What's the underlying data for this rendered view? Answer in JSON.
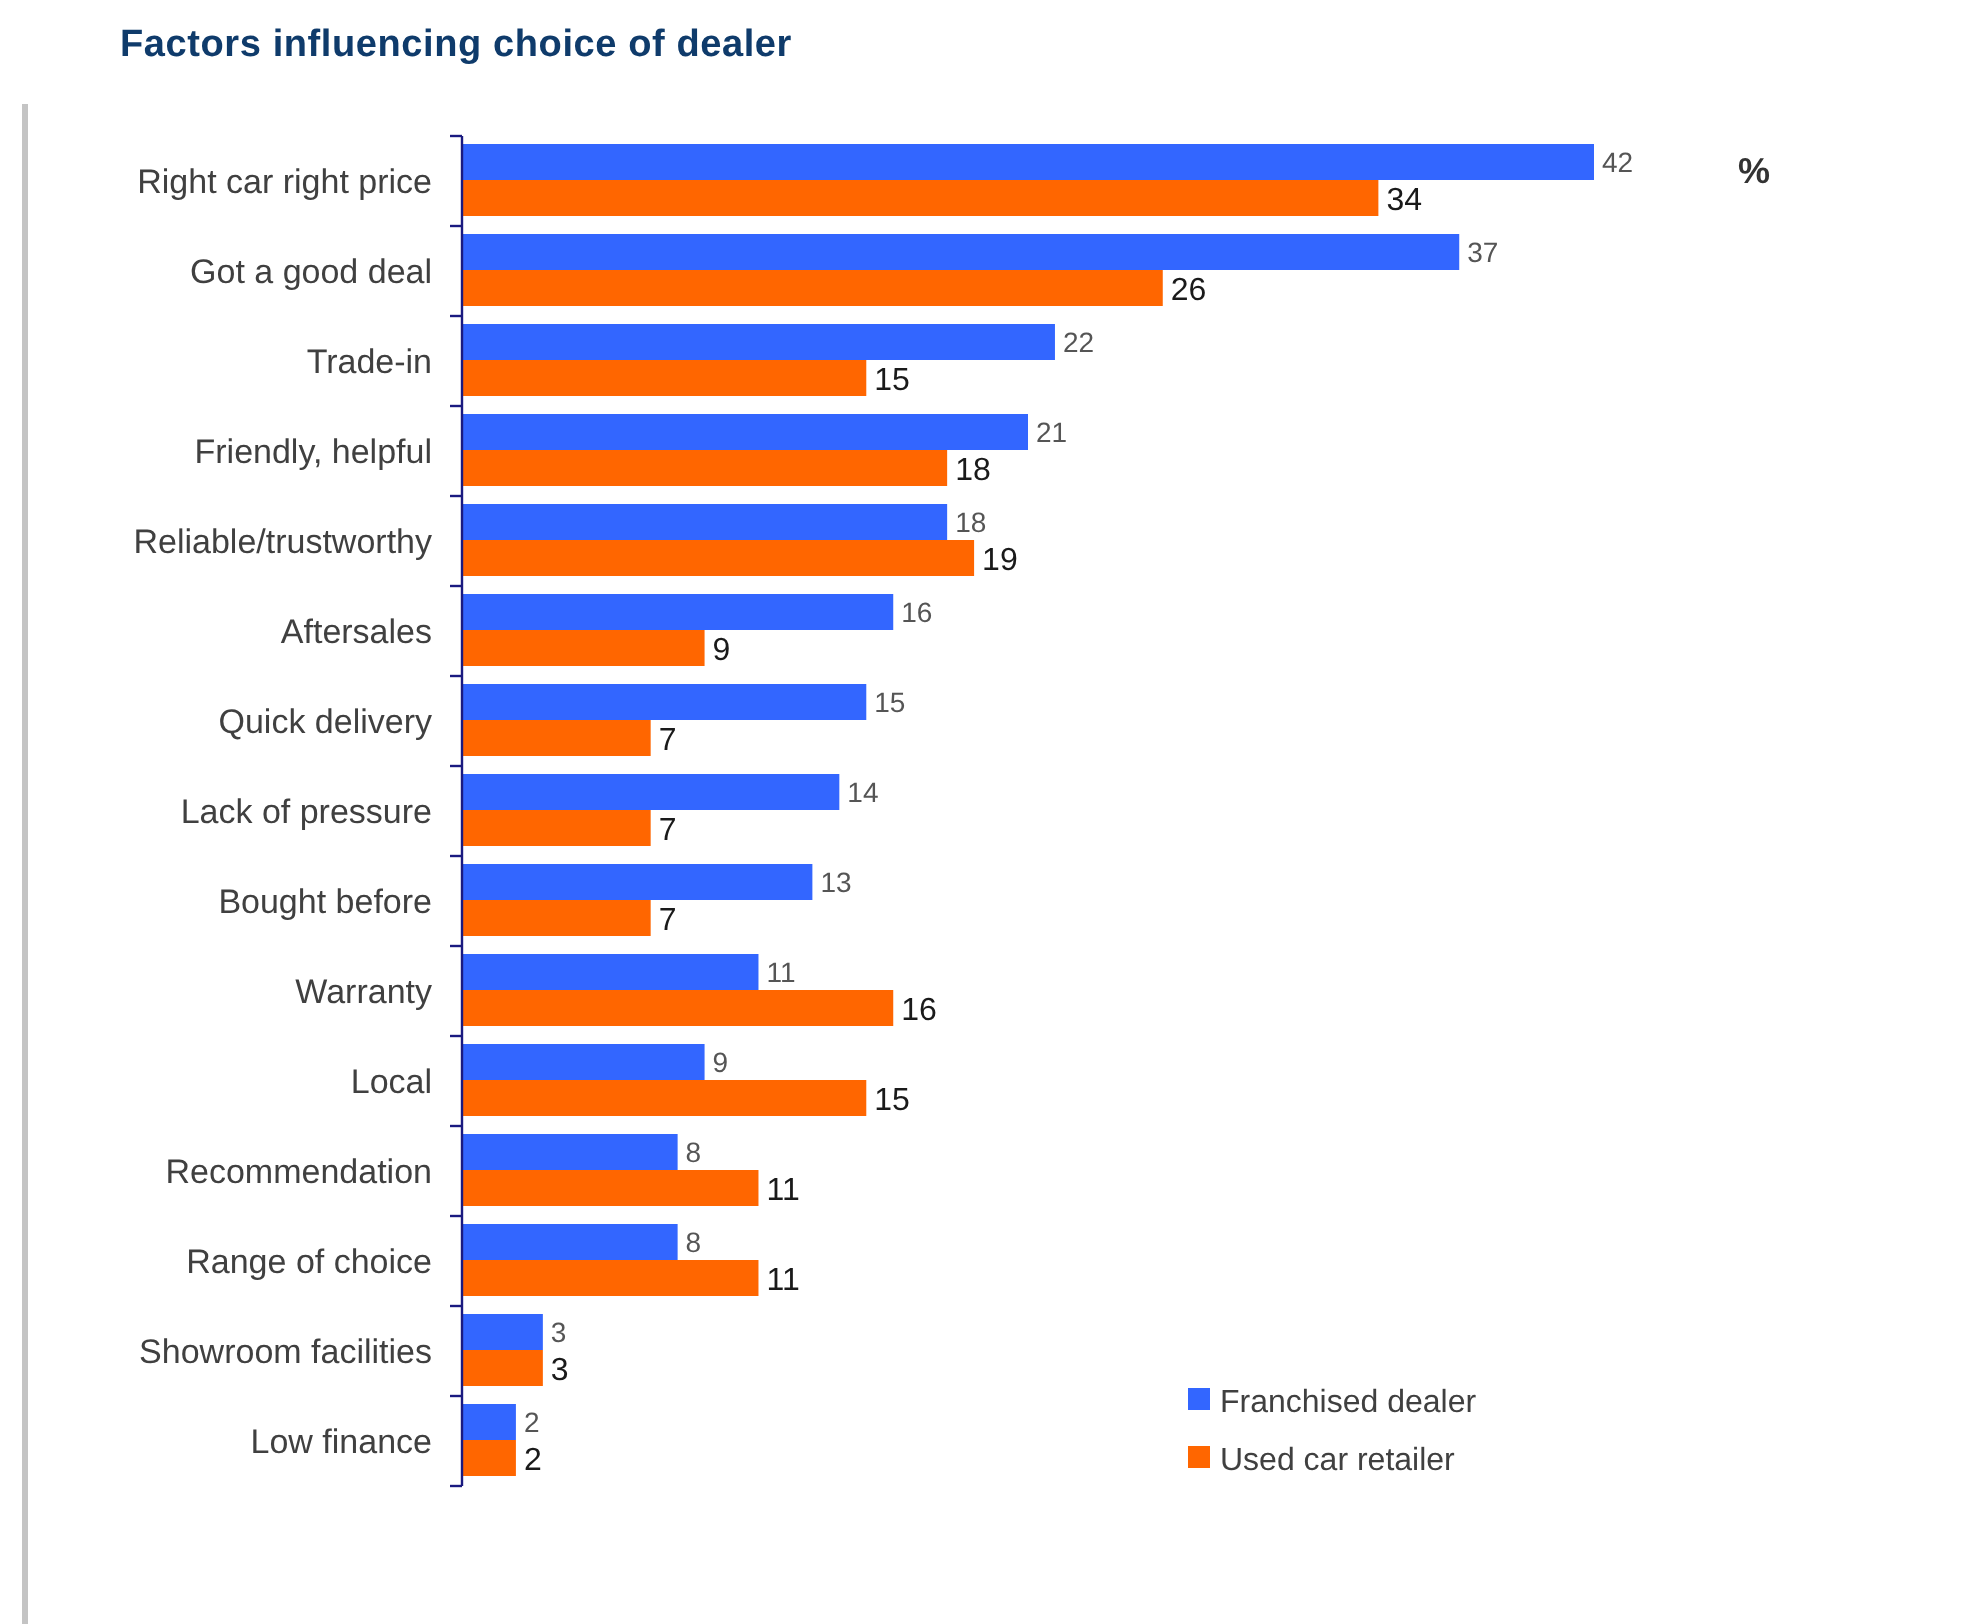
{
  "chart_data": {
    "type": "bar",
    "orientation": "horizontal",
    "title": "Factors influencing choice of dealer",
    "xlabel": "%",
    "categories": [
      "Right car right price",
      "Got a good deal",
      "Trade-in",
      "Friendly, helpful",
      "Reliable/trustworthy",
      "Aftersales",
      "Quick delivery",
      "Lack of pressure",
      "Bought before",
      "Warranty",
      "Local",
      "Recommendation",
      "Range of choice",
      "Showroom facilities",
      "Low finance"
    ],
    "series": [
      {
        "name": "Franchised dealer",
        "color": "#3366ff",
        "values": [
          42,
          37,
          22,
          21,
          18,
          16,
          15,
          14,
          13,
          11,
          9,
          8,
          8,
          3,
          2
        ]
      },
      {
        "name": "Used car retailer",
        "color": "#ff6600",
        "values": [
          34,
          26,
          15,
          18,
          19,
          9,
          7,
          7,
          7,
          16,
          15,
          11,
          11,
          3,
          2
        ]
      }
    ],
    "data_labels": true,
    "legend": "bottom right"
  }
}
